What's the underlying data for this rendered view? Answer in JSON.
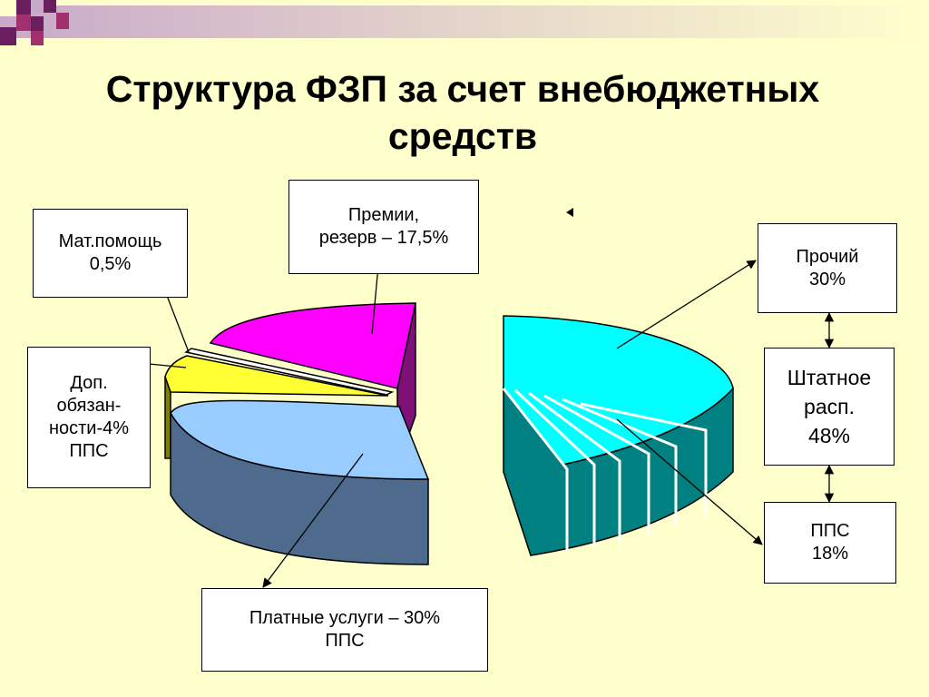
{
  "slide": {
    "title": "Структура ФЗП за счет внебюджетных средств",
    "colors": {
      "background": "#FFFFCC",
      "header_band_start": "#C9A9C9",
      "deco_square_purple": "#6B1E5E",
      "deco_square_magenta": "#A0306E"
    }
  },
  "chart_data": [
    {
      "type": "pie",
      "title": "",
      "slices": [
        {
          "label": "Платные услуги – 30%\nППС",
          "value": 30,
          "color": "#99CCFF",
          "side_color": "#4E6A8C"
        },
        {
          "label": "Доп.\nобязан-\nности-4%\nППС",
          "value": 4,
          "color": "#FFFF33",
          "side_color": "#808000"
        },
        {
          "label": "Мат.помощь\n0,5%",
          "value": 0.5,
          "color": "#FFFFFF",
          "side_color": "#A0A0A0"
        },
        {
          "label": "Премии,\nрезерв – 17,5%",
          "value": 17.5,
          "color": "#FF00FF",
          "side_color": "#7E1078"
        }
      ]
    },
    {
      "type": "pie",
      "title": "",
      "slices": [
        {
          "label": "Прочий\n30%",
          "value": 30,
          "color": "#00FFFF",
          "side_color": "#008080"
        },
        {
          "label": "Штатное\nрасп.\n48%",
          "value": 48,
          "color": "#00FFFF",
          "side_color": "#008080"
        },
        {
          "label": "ППС\n18%",
          "value": 18,
          "color": "#00FFFF",
          "side_color": "#008080"
        }
      ]
    }
  ]
}
